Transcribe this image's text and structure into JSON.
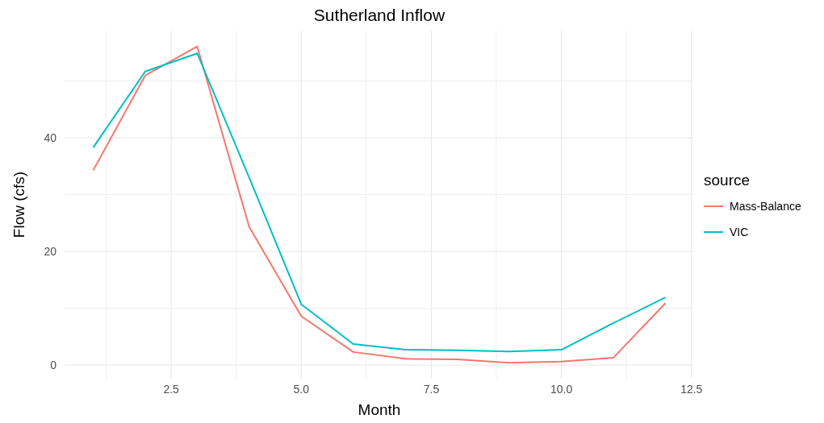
{
  "chart_data": {
    "type": "line",
    "title": "Sutherland Inflow",
    "xlabel": "Month",
    "ylabel": "Flow (cfs)",
    "legend_title": "source",
    "x": [
      1,
      2,
      3,
      4,
      5,
      6,
      7,
      8,
      9,
      10,
      11,
      12
    ],
    "series": [
      {
        "name": "Mass-Balance",
        "color": "#f8766d",
        "values": [
          34.3,
          51,
          56.1,
          24.3,
          8.6,
          2.3,
          1.1,
          1.0,
          0.4,
          0.6,
          1.3,
          10.9
        ]
      },
      {
        "name": "VIC",
        "color": "#00bfc4",
        "values": [
          38.3,
          51.7,
          54.9,
          33,
          10.7,
          3.7,
          2.7,
          2.6,
          2.4,
          2.7,
          7.4,
          11.9
        ]
      }
    ],
    "xlim": [
      0.45,
      12.55
    ],
    "ylim": [
      -2.4,
      58.9
    ],
    "xticks": [
      {
        "value": 1.25,
        "label": null
      },
      {
        "value": 2.5,
        "label": "2.5"
      },
      {
        "value": 3.75,
        "label": null
      },
      {
        "value": 5,
        "label": "5.0"
      },
      {
        "value": 6.25,
        "label": null
      },
      {
        "value": 7.5,
        "label": "7.5"
      },
      {
        "value": 8.75,
        "label": null
      },
      {
        "value": 10,
        "label": "10.0"
      },
      {
        "value": 11.25,
        "label": null
      },
      {
        "value": 12.5,
        "label": "12.5"
      }
    ],
    "yticks": [
      0,
      {
        "value": 10,
        "label": null
      },
      20,
      {
        "value": 30,
        "label": null
      },
      40,
      {
        "value": 50,
        "label": null
      }
    ],
    "grid": true,
    "legend": "right",
    "marker": "none",
    "line_style": "solid"
  }
}
